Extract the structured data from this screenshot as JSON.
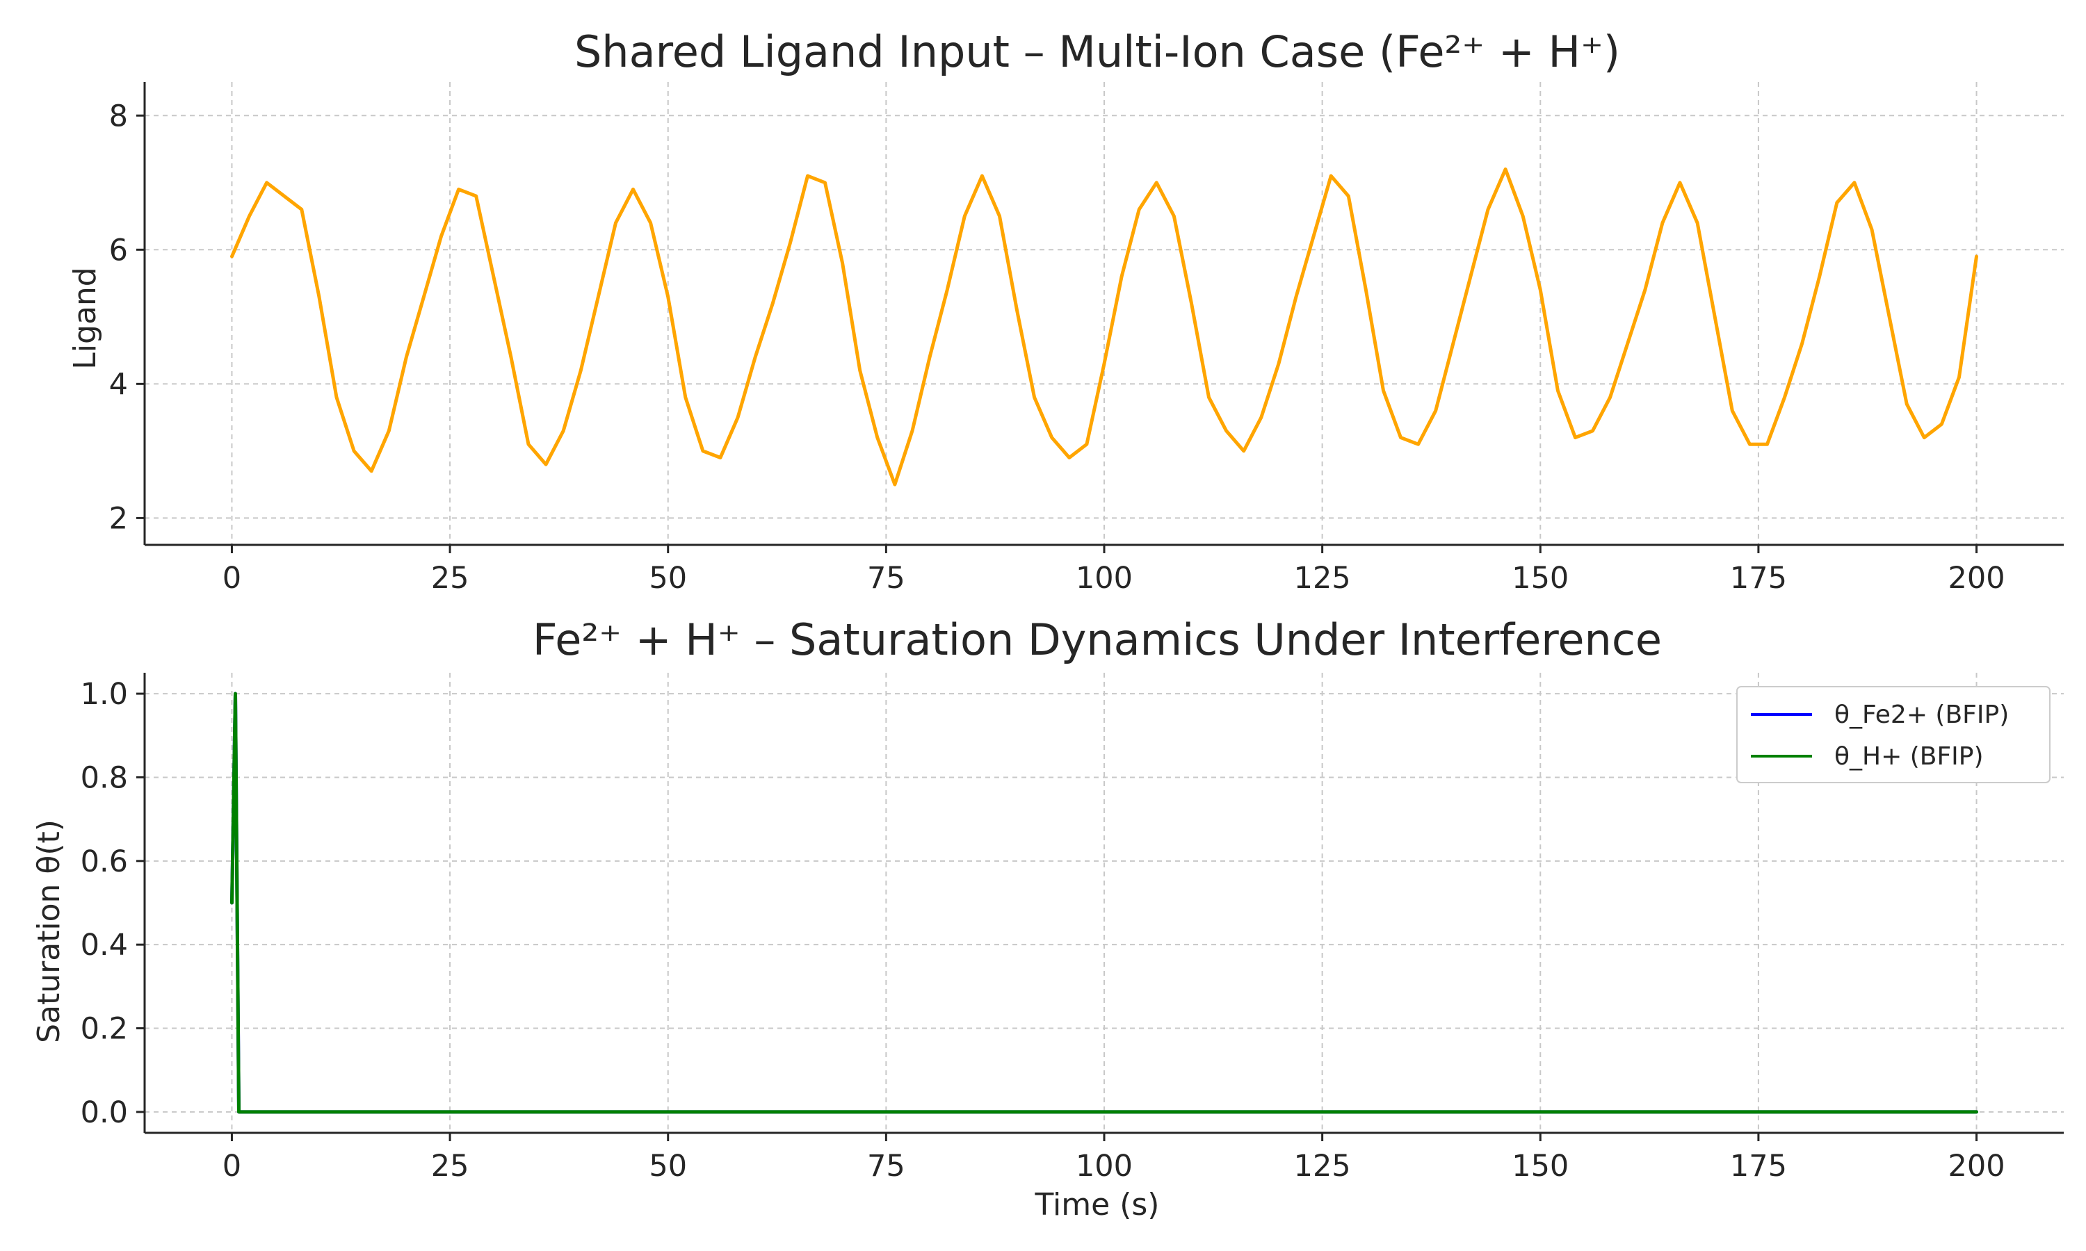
{
  "chart_data": [
    {
      "type": "line",
      "title": "Shared Ligand Input – Multi-Ion Case (Fe²⁺ + H⁺)",
      "xlabel": "",
      "ylabel": "Ligand",
      "xlim": [
        -10,
        210
      ],
      "ylim": [
        1.6,
        8.5
      ],
      "xticks": [
        0,
        25,
        50,
        75,
        100,
        125,
        150,
        175,
        200
      ],
      "yticks": [
        2,
        4,
        6,
        8
      ],
      "grid": true,
      "legend": null,
      "series": [
        {
          "color": "#ffa500",
          "x": [
            0,
            2,
            4,
            6,
            8,
            10,
            12,
            14,
            16,
            18,
            20,
            22,
            24,
            26,
            28,
            30,
            32,
            34,
            36,
            38,
            40,
            42,
            44,
            46,
            48,
            50,
            52,
            54,
            56,
            58,
            60,
            62,
            64,
            66,
            68,
            70,
            72,
            74,
            76,
            78,
            80,
            82,
            84,
            86,
            88,
            90,
            92,
            94,
            96,
            98,
            100,
            102,
            104,
            106,
            108,
            110,
            112,
            114,
            116,
            118,
            120,
            122,
            124,
            126,
            128,
            130,
            132,
            134,
            136,
            138,
            140,
            142,
            144,
            146,
            148,
            150,
            152,
            154,
            156,
            158,
            160,
            162,
            164,
            166,
            168,
            170,
            172,
            174,
            176,
            178,
            180,
            182,
            184,
            186,
            188,
            190,
            192,
            194,
            196,
            198,
            200
          ],
          "y": [
            5.9,
            6.5,
            7.0,
            6.8,
            6.6,
            5.3,
            3.8,
            3.0,
            2.7,
            3.3,
            4.4,
            5.3,
            6.2,
            6.9,
            6.8,
            5.6,
            4.4,
            3.1,
            2.8,
            3.3,
            4.2,
            5.3,
            6.4,
            6.9,
            6.4,
            5.3,
            3.8,
            3.0,
            2.9,
            3.5,
            4.4,
            5.2,
            6.1,
            7.1,
            7.0,
            5.8,
            4.2,
            3.2,
            2.5,
            3.3,
            4.4,
            5.4,
            6.5,
            7.1,
            6.5,
            5.1,
            3.8,
            3.2,
            2.9,
            3.1,
            4.3,
            5.6,
            6.6,
            7.0,
            6.5,
            5.2,
            3.8,
            3.3,
            3.0,
            3.5,
            4.3,
            5.3,
            6.2,
            7.1,
            6.8,
            5.4,
            3.9,
            3.2,
            3.1,
            3.6,
            4.6,
            5.6,
            6.6,
            7.2,
            6.5,
            5.4,
            3.9,
            3.2,
            3.3,
            3.8,
            4.6,
            5.4,
            6.4,
            7.0,
            6.4,
            5.0,
            3.6,
            3.1,
            3.1,
            3.8,
            4.6,
            5.6,
            6.7,
            7.0,
            6.3,
            5.0,
            3.7,
            3.2,
            3.4,
            4.1,
            5.9
          ]
        }
      ]
    },
    {
      "type": "line",
      "title": "Fe²⁺ + H⁺ – Saturation Dynamics Under Interference",
      "xlabel": "Time (s)",
      "ylabel": "Saturation θ(t)",
      "xlim": [
        -10,
        210
      ],
      "ylim": [
        -0.05,
        1.05
      ],
      "xticks": [
        0,
        25,
        50,
        75,
        100,
        125,
        150,
        175,
        200
      ],
      "yticks": [
        0.0,
        0.2,
        0.4,
        0.6,
        0.8,
        1.0
      ],
      "grid": true,
      "legend": "top-right",
      "series": [
        {
          "name": "θ_Fe2+ (BFIP)",
          "color": "#0000ff",
          "x": [
            0,
            0.4,
            0.8,
            200
          ],
          "y": [
            0.5,
            1.0,
            0.0,
            0.0
          ]
        },
        {
          "name": "θ_H+ (BFIP)",
          "color": "#008000",
          "x": [
            0,
            0.4,
            0.8,
            200
          ],
          "y": [
            0.5,
            1.0,
            0.0,
            0.0
          ]
        }
      ]
    }
  ]
}
